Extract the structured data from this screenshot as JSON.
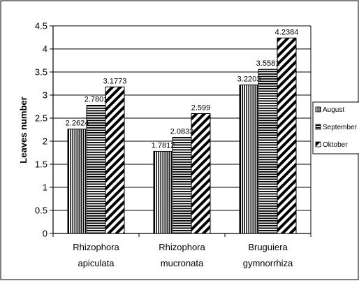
{
  "chart_data": {
    "type": "bar",
    "ylabel": "Leaves number",
    "ylim": [
      0,
      4.5
    ],
    "yticks": [
      "0",
      "0.5",
      "1",
      "1.5",
      "2",
      "2.5",
      "3",
      "3.5",
      "4",
      "4.5"
    ],
    "categories": [
      [
        "Rhizophora",
        "apiculata"
      ],
      [
        "Rhizophora",
        "mucronata"
      ],
      [
        "Bruguiera",
        "gymnorrhiza"
      ]
    ],
    "series": [
      {
        "name": "August",
        "pattern": "vertical-stripes",
        "values": [
          2.2624,
          1.7812,
          3.2203
        ],
        "labels": [
          "2.2624",
          "1.7812",
          "3.2203"
        ]
      },
      {
        "name": "September",
        "pattern": "horizontal-stripes",
        "values": [
          2.7801,
          2.0833,
          3.5581
        ],
        "labels": [
          "2.7801",
          "2.0833",
          "3.5581"
        ]
      },
      {
        "name": "Oktober",
        "pattern": "diagonal-stripes",
        "values": [
          3.1773,
          2.599,
          4.2384
        ],
        "labels": [
          "3.1773",
          "2.599",
          "4.2384"
        ]
      }
    ],
    "grid": true,
    "legend_position": "right"
  },
  "colors": {
    "stroke": "#000000",
    "background": "#ffffff",
    "grid": "#000000"
  }
}
